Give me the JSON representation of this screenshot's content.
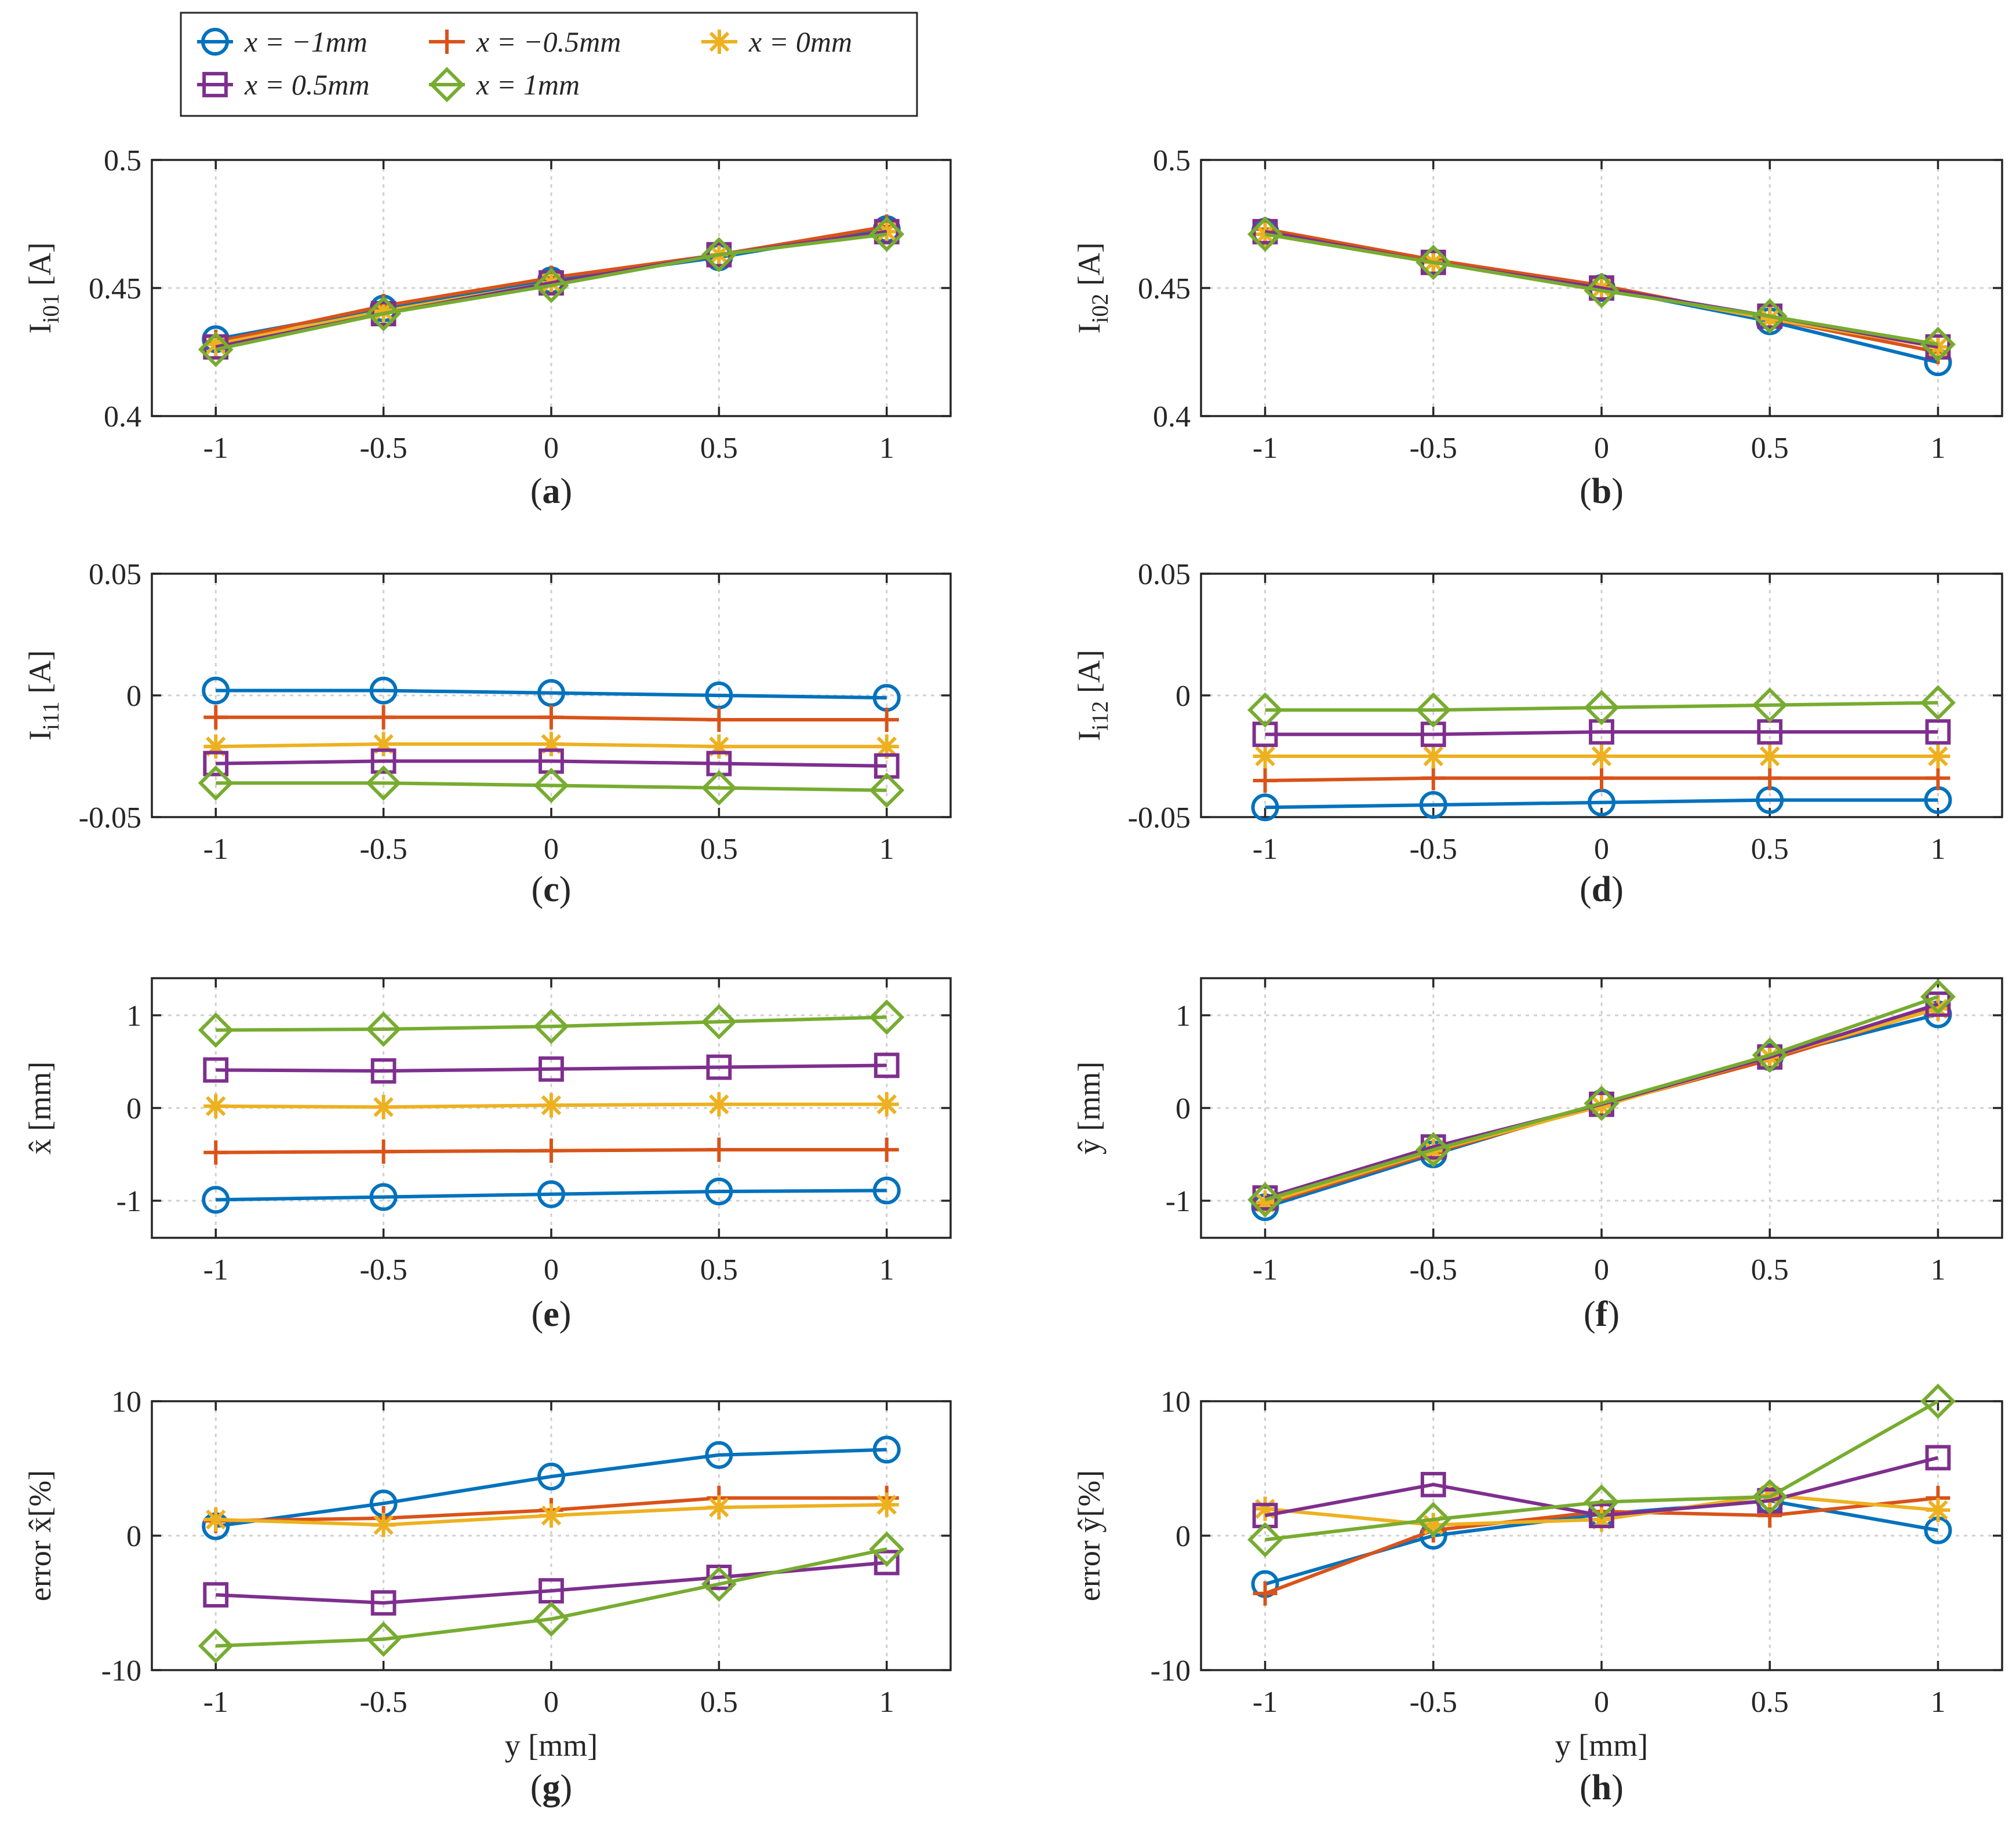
{
  "legend": {
    "entries": [
      {
        "series": 0,
        "label": "x = −1mm"
      },
      {
        "series": 1,
        "label": "x = −0.5mm"
      },
      {
        "series": 2,
        "label": "x = 0mm"
      },
      {
        "series": 3,
        "label": "x = 0.5mm"
      },
      {
        "series": 4,
        "label": "x = 1mm"
      }
    ]
  },
  "series_styles": [
    {
      "name": "x = −1mm",
      "color": "#0072BD",
      "marker": "circle"
    },
    {
      "name": "x = −0.5mm",
      "color": "#D95319",
      "marker": "plus"
    },
    {
      "name": "x = 0mm",
      "color": "#EDB120",
      "marker": "asterisk"
    },
    {
      "name": "x = 0.5mm",
      "color": "#7E2F8E",
      "marker": "square"
    },
    {
      "name": "x = 1mm",
      "color": "#77AC30",
      "marker": "diamond"
    }
  ],
  "chart_data": [
    {
      "id": "a",
      "type": "line",
      "panel_label": "(a)",
      "ylabel_main": "I",
      "ylabel_sub": "i01",
      "ylabel_unit": " [A]",
      "xlabel": "",
      "x": [
        -1,
        -0.5,
        0,
        0.5,
        1
      ],
      "x_tick_labels": [
        "-1",
        "-0.5",
        "0",
        "0.5",
        "1"
      ],
      "ylim": [
        0.4,
        0.5
      ],
      "y_ticks": [
        0.4,
        0.45,
        0.5
      ],
      "y_tick_labels": [
        "0.4",
        "0.45",
        "0.5"
      ],
      "series": [
        {
          "name": "x = −1mm",
          "values": [
            0.43,
            0.442,
            0.453,
            0.462,
            0.473
          ]
        },
        {
          "name": "x = −0.5mm",
          "values": [
            0.429,
            0.443,
            0.454,
            0.463,
            0.474
          ]
        },
        {
          "name": "x = 0mm",
          "values": [
            0.428,
            0.441,
            0.452,
            0.463,
            0.472
          ]
        },
        {
          "name": "x = 0.5mm",
          "values": [
            0.427,
            0.44,
            0.452,
            0.463,
            0.472
          ]
        },
        {
          "name": "x = 1mm",
          "values": [
            0.426,
            0.44,
            0.451,
            0.463,
            0.471
          ]
        }
      ]
    },
    {
      "id": "b",
      "type": "line",
      "panel_label": "(b)",
      "ylabel_main": "I",
      "ylabel_sub": "i02",
      "ylabel_unit": " [A]",
      "xlabel": "",
      "x": [
        -1,
        -0.5,
        0,
        0.5,
        1
      ],
      "x_tick_labels": [
        "-1",
        "-0.5",
        "0",
        "0.5",
        "1"
      ],
      "ylim": [
        0.4,
        0.5
      ],
      "y_ticks": [
        0.4,
        0.45,
        0.5
      ],
      "y_tick_labels": [
        "0.4",
        "0.45",
        "0.5"
      ],
      "series": [
        {
          "name": "x = −1mm",
          "values": [
            0.472,
            0.46,
            0.45,
            0.437,
            0.421
          ]
        },
        {
          "name": "x = −0.5mm",
          "values": [
            0.473,
            0.461,
            0.451,
            0.438,
            0.425
          ]
        },
        {
          "name": "x = 0mm",
          "values": [
            0.471,
            0.46,
            0.45,
            0.438,
            0.427
          ]
        },
        {
          "name": "x = 0.5mm",
          "values": [
            0.472,
            0.46,
            0.45,
            0.439,
            0.427
          ]
        },
        {
          "name": "x = 1mm",
          "values": [
            0.471,
            0.46,
            0.449,
            0.439,
            0.428
          ]
        }
      ]
    },
    {
      "id": "c",
      "type": "line",
      "panel_label": "(c)",
      "ylabel_main": "I",
      "ylabel_sub": "i11",
      "ylabel_unit": " [A]",
      "xlabel": "",
      "x": [
        -1,
        -0.5,
        0,
        0.5,
        1
      ],
      "x_tick_labels": [
        "-1",
        "-0.5",
        "0",
        "0.5",
        "1"
      ],
      "ylim": [
        -0.05,
        0.05
      ],
      "y_ticks": [
        -0.05,
        0,
        0.05
      ],
      "y_tick_labels": [
        "-0.05",
        "0",
        "0.05"
      ],
      "series": [
        {
          "name": "x = −1mm",
          "values": [
            0.002,
            0.002,
            0.001,
            0.0,
            -0.001
          ]
        },
        {
          "name": "x = −0.5mm",
          "values": [
            -0.009,
            -0.009,
            -0.009,
            -0.01,
            -0.01
          ]
        },
        {
          "name": "x = 0mm",
          "values": [
            -0.021,
            -0.02,
            -0.02,
            -0.021,
            -0.021
          ]
        },
        {
          "name": "x = 0.5mm",
          "values": [
            -0.028,
            -0.027,
            -0.027,
            -0.028,
            -0.029
          ]
        },
        {
          "name": "x = 1mm",
          "values": [
            -0.036,
            -0.036,
            -0.037,
            -0.038,
            -0.039
          ]
        }
      ]
    },
    {
      "id": "d",
      "type": "line",
      "panel_label": "(d)",
      "ylabel_main": "I",
      "ylabel_sub": "i12",
      "ylabel_unit": " [A]",
      "xlabel": "",
      "x": [
        -1,
        -0.5,
        0,
        0.5,
        1
      ],
      "x_tick_labels": [
        "-1",
        "-0.5",
        "0",
        "0.5",
        "1"
      ],
      "ylim": [
        -0.05,
        0.05
      ],
      "y_ticks": [
        -0.05,
        0,
        0.05
      ],
      "y_tick_labels": [
        "-0.05",
        "0",
        "0.05"
      ],
      "series": [
        {
          "name": "x = −1mm",
          "values": [
            -0.046,
            -0.045,
            -0.044,
            -0.043,
            -0.043
          ]
        },
        {
          "name": "x = −0.5mm",
          "values": [
            -0.035,
            -0.034,
            -0.034,
            -0.034,
            -0.034
          ]
        },
        {
          "name": "x = 0mm",
          "values": [
            -0.025,
            -0.025,
            -0.025,
            -0.025,
            -0.025
          ]
        },
        {
          "name": "x = 0.5mm",
          "values": [
            -0.016,
            -0.016,
            -0.015,
            -0.015,
            -0.015
          ]
        },
        {
          "name": "x = 1mm",
          "values": [
            -0.006,
            -0.006,
            -0.005,
            -0.004,
            -0.003
          ]
        }
      ]
    },
    {
      "id": "e",
      "type": "line",
      "panel_label": "(e)",
      "ylabel_main": "x̂",
      "ylabel_sub": "",
      "ylabel_unit": " [mm]",
      "xlabel": "",
      "x": [
        -1,
        -0.5,
        0,
        0.5,
        1
      ],
      "x_tick_labels": [
        "-1",
        "-0.5",
        "0",
        "0.5",
        "1"
      ],
      "ylim": [
        -1.4,
        1.4
      ],
      "y_ticks": [
        -1,
        0,
        1
      ],
      "y_tick_labels": [
        "-1",
        "0",
        "1"
      ],
      "series": [
        {
          "name": "x = −1mm",
          "values": [
            -0.99,
            -0.96,
            -0.93,
            -0.9,
            -0.89
          ]
        },
        {
          "name": "x = −0.5mm",
          "values": [
            -0.48,
            -0.47,
            -0.46,
            -0.45,
            -0.45
          ]
        },
        {
          "name": "x = 0mm",
          "values": [
            0.02,
            0.01,
            0.03,
            0.04,
            0.04
          ]
        },
        {
          "name": "x = 0.5mm",
          "values": [
            0.41,
            0.4,
            0.42,
            0.44,
            0.46
          ]
        },
        {
          "name": "x = 1mm",
          "values": [
            0.84,
            0.85,
            0.88,
            0.93,
            0.98
          ]
        }
      ]
    },
    {
      "id": "f",
      "type": "line",
      "panel_label": "(f)",
      "ylabel_main": "ŷ",
      "ylabel_sub": "",
      "ylabel_unit": " [mm]",
      "xlabel": "",
      "x": [
        -1,
        -0.5,
        0,
        0.5,
        1
      ],
      "x_tick_labels": [
        "-1",
        "-0.5",
        "0",
        "0.5",
        "1"
      ],
      "ylim": [
        -1.4,
        1.4
      ],
      "y_ticks": [
        -1,
        0,
        1
      ],
      "y_tick_labels": [
        "-1",
        "0",
        "1"
      ],
      "series": [
        {
          "name": "x = −1mm",
          "values": [
            -1.07,
            -0.5,
            0.05,
            0.55,
            1.01
          ]
        },
        {
          "name": "x = −0.5mm",
          "values": [
            -1.04,
            -0.48,
            0.03,
            0.52,
            1.08
          ]
        },
        {
          "name": "x = 0mm",
          "values": [
            -1.02,
            -0.46,
            0.02,
            0.55,
            1.07
          ]
        },
        {
          "name": "x = 0.5mm",
          "values": [
            -0.97,
            -0.42,
            0.04,
            0.55,
            1.12
          ]
        },
        {
          "name": "x = 1mm",
          "values": [
            -0.99,
            -0.45,
            0.05,
            0.57,
            1.2
          ]
        }
      ]
    },
    {
      "id": "g",
      "type": "line",
      "panel_label": "(g)",
      "ylabel_main": "error x̂[%]",
      "ylabel_sub": "",
      "ylabel_unit": "",
      "xlabel": "y [mm]",
      "x": [
        -1,
        -0.5,
        0,
        0.5,
        1
      ],
      "x_tick_labels": [
        "-1",
        "-0.5",
        "0",
        "0.5",
        "1"
      ],
      "ylim": [
        -10,
        10
      ],
      "y_ticks": [
        -10,
        0,
        10
      ],
      "y_tick_labels": [
        "-10",
        "0",
        "10"
      ],
      "series": [
        {
          "name": "x = −1mm",
          "values": [
            0.7,
            2.4,
            4.4,
            6.0,
            6.4
          ]
        },
        {
          "name": "x = −0.5mm",
          "values": [
            1.1,
            1.3,
            1.9,
            2.8,
            2.8
          ]
        },
        {
          "name": "x = 0mm",
          "values": [
            1.2,
            0.8,
            1.5,
            2.1,
            2.3
          ]
        },
        {
          "name": "x = 0.5mm",
          "values": [
            -4.4,
            -5.0,
            -4.1,
            -3.1,
            -2.0
          ]
        },
        {
          "name": "x = 1mm",
          "values": [
            -8.2,
            -7.7,
            -6.2,
            -3.6,
            -1.0
          ]
        }
      ]
    },
    {
      "id": "h",
      "type": "line",
      "panel_label": "(h)",
      "ylabel_main": "error ŷ[%]",
      "ylabel_sub": "",
      "ylabel_unit": "",
      "xlabel": "y [mm]",
      "x": [
        -1,
        -0.5,
        0,
        0.5,
        1
      ],
      "x_tick_labels": [
        "-1",
        "-0.5",
        "0",
        "0.5",
        "1"
      ],
      "ylim": [
        -10,
        10
      ],
      "y_ticks": [
        -10,
        0,
        10
      ],
      "y_tick_labels": [
        "-10",
        "0",
        "10"
      ],
      "series": [
        {
          "name": "x = −1mm",
          "values": [
            -3.6,
            0.0,
            1.6,
            2.6,
            0.4
          ]
        },
        {
          "name": "x = −0.5mm",
          "values": [
            -4.3,
            0.4,
            1.8,
            1.5,
            2.8
          ]
        },
        {
          "name": "x = 0mm",
          "values": [
            2.0,
            0.8,
            1.2,
            3.0,
            1.9
          ]
        },
        {
          "name": "x = 0.5mm",
          "values": [
            1.5,
            3.8,
            1.5,
            2.6,
            5.8
          ]
        },
        {
          "name": "x = 1mm",
          "values": [
            -0.3,
            1.2,
            2.5,
            2.9,
            10.0
          ]
        }
      ]
    }
  ]
}
